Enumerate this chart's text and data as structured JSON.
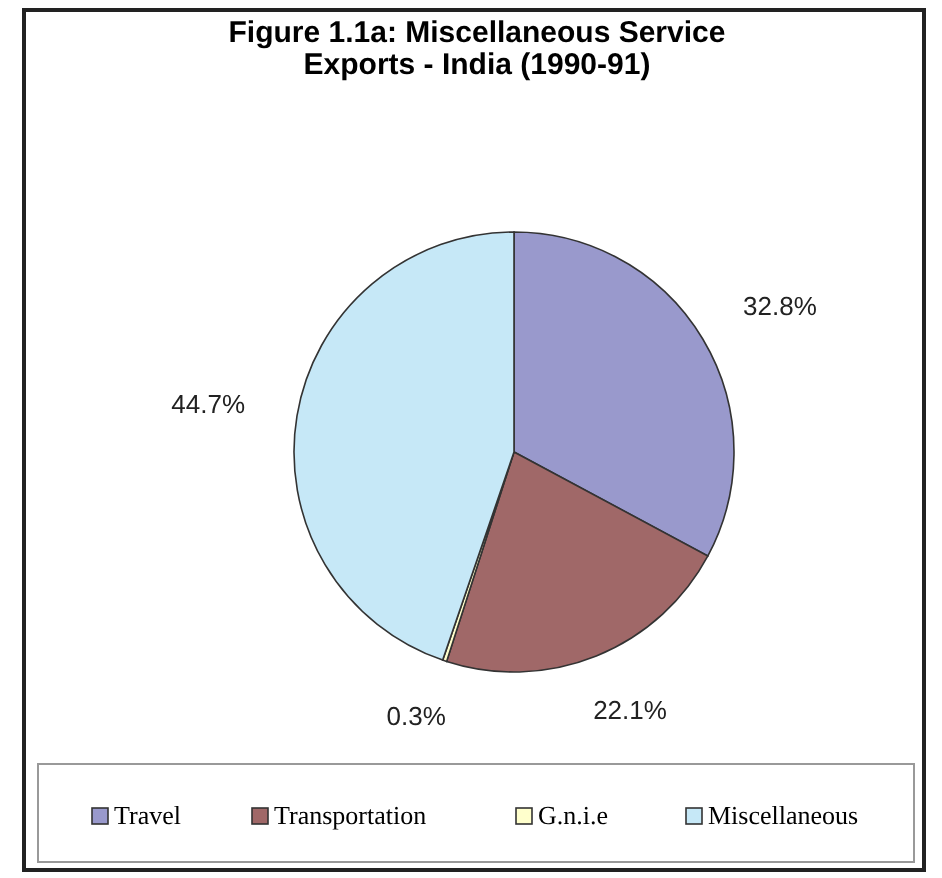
{
  "chart_data": {
    "type": "pie",
    "title": "Figure 1.1a: Miscellaneous Service Exports - India (1990-91)",
    "categories": [
      "Travel",
      "Transportation",
      "G.n.i.e",
      "Miscellaneous"
    ],
    "values": [
      32.8,
      22.1,
      0.3,
      44.7
    ],
    "colors": [
      "#9999cc",
      "#a06868",
      "#ffffcc",
      "#c6e8f7"
    ],
    "value_labels": [
      "32.8%",
      "22.1%",
      "0.3%",
      "44.7%"
    ],
    "legend": "bottom"
  }
}
